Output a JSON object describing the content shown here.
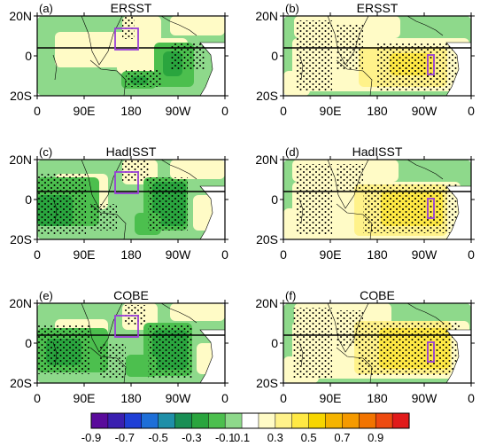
{
  "chart_data": {
    "type": "heatmap",
    "panels": [
      {
        "label": "(a)",
        "title": "ERSST"
      },
      {
        "label": "(b)",
        "title": "ERSST"
      },
      {
        "label": "(c)",
        "title": "HadISST"
      },
      {
        "label": "(d)",
        "title": "HadISST"
      },
      {
        "label": "(e)",
        "title": "COBE"
      },
      {
        "label": "(f)",
        "title": "COBE"
      }
    ],
    "x_ticks": [
      "0",
      "90E",
      "180",
      "90W",
      "0"
    ],
    "y_ticks": [
      "20N",
      "0",
      "20S"
    ],
    "colorbar": {
      "tick_labels": [
        "-0.9",
        "-0.7",
        "-0.5",
        "-0.3",
        "-0.1",
        "0.1",
        "0.3",
        "0.5",
        "0.7",
        "0.9"
      ],
      "bounds": [
        -0.9,
        -0.8,
        -0.7,
        -0.6,
        -0.5,
        -0.4,
        -0.3,
        -0.2,
        -0.1,
        0.1,
        0.2,
        0.3,
        0.4,
        0.5,
        0.6,
        0.7,
        0.8,
        0.9
      ],
      "colors": [
        "#5a0a9b",
        "#3a1fb0",
        "#1f3fd6",
        "#1e6fd8",
        "#1f8fa8",
        "#198f55",
        "#2aa53e",
        "#4cbf4e",
        "#8ed98b",
        "#ffffff",
        "#fffbc6",
        "#fff28a",
        "#ffe944",
        "#f7d600",
        "#f5b400",
        "#f59a00",
        "#f27400",
        "#ee4a10",
        "#e11a1a"
      ]
    }
  }
}
